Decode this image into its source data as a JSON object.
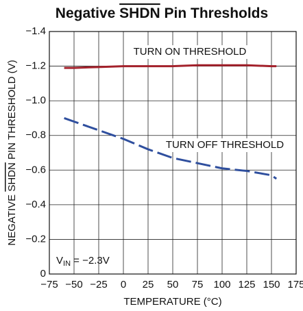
{
  "chart_data": {
    "type": "line",
    "title": [
      "Negative ",
      "SHDN",
      " Pin Thresholds"
    ],
    "xlabel": "TEMPERATURE (°C)",
    "ylabel": [
      "NEGATIVE ",
      "SHDN",
      " PIN THRESHOLD (V)"
    ],
    "x": [
      -60,
      -50,
      -25,
      0,
      25,
      50,
      75,
      100,
      125,
      150,
      155
    ],
    "series": [
      {
        "name": "TURN ON THRESHOLD",
        "color": "#a3212b",
        "dash": false,
        "values": [
          -1.19,
          -1.19,
          -1.195,
          -1.2,
          -1.2,
          -1.2,
          -1.205,
          -1.205,
          -1.205,
          -1.2,
          -1.2
        ]
      },
      {
        "name": "TURN OFF THRESHOLD",
        "color": "#2f4f9e",
        "dash": true,
        "values": [
          -0.9,
          -0.88,
          -0.83,
          -0.78,
          -0.72,
          -0.67,
          -0.64,
          -0.61,
          -0.595,
          -0.57,
          -0.55
        ]
      }
    ],
    "condition": {
      "symbol": "V",
      "subscript": "IN",
      "text": " = −2.3V"
    },
    "xlim": [
      -75,
      175
    ],
    "xticks": [
      {
        "value": -75,
        "label": "−75"
      },
      {
        "value": -50,
        "label": "−50"
      },
      {
        "value": -25,
        "label": "−25"
      },
      0,
      25,
      50,
      75,
      100,
      125,
      150,
      175
    ],
    "ylim": [
      0,
      -1.4
    ],
    "yticks": [
      0,
      {
        "value": -0.2,
        "label": "−0.2"
      },
      {
        "value": -0.4,
        "label": "−0.4"
      },
      {
        "value": -0.6,
        "label": "−0.6"
      },
      {
        "value": -0.8,
        "label": "−0.8"
      },
      {
        "value": -1.0,
        "label": "−1.0"
      },
      {
        "value": -1.2,
        "label": "−1.2"
      },
      {
        "value": -1.4,
        "label": "−1.4"
      }
    ],
    "grid": true
  }
}
